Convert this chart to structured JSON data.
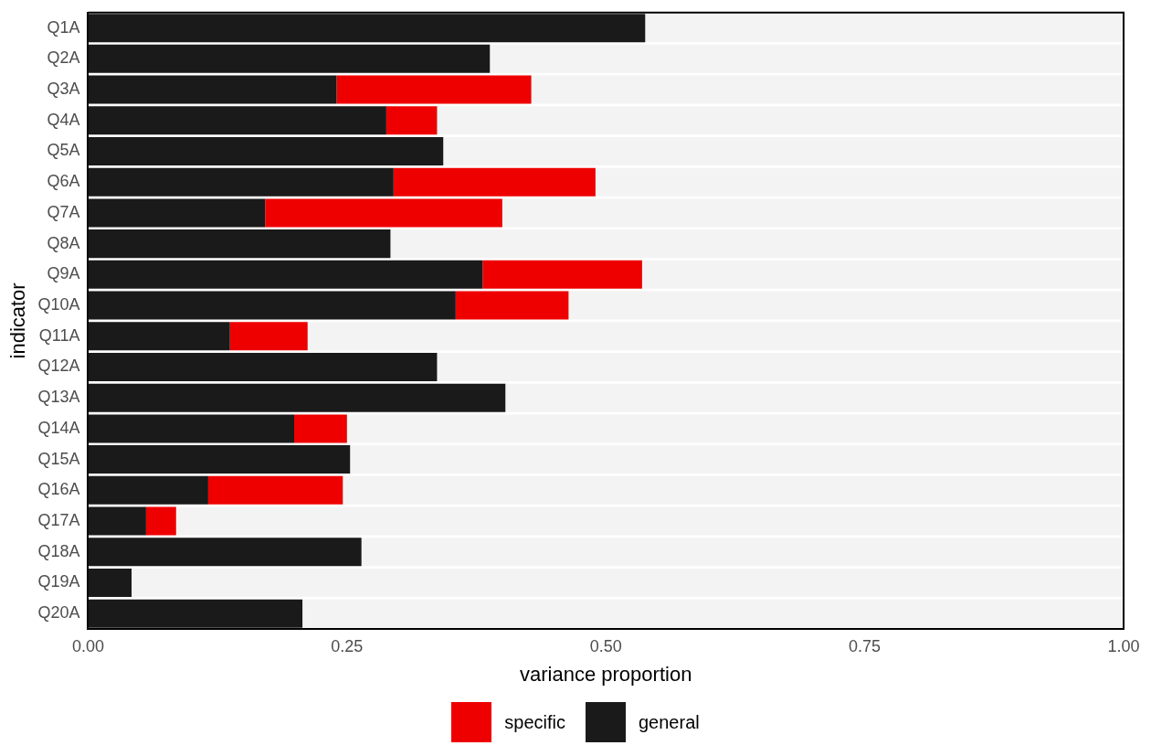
{
  "chart_data": {
    "type": "bar",
    "orientation": "horizontal",
    "stacked": true,
    "xlabel": "variance proportion",
    "ylabel": "indicator",
    "categories": [
      "Q1A",
      "Q2A",
      "Q3A",
      "Q4A",
      "Q5A",
      "Q6A",
      "Q7A",
      "Q8A",
      "Q9A",
      "Q10A",
      "Q11A",
      "Q12A",
      "Q13A",
      "Q14A",
      "Q15A",
      "Q16A",
      "Q17A",
      "Q18A",
      "Q19A",
      "Q20A"
    ],
    "series": [
      {
        "name": "general",
        "color": "#1a1a1a",
        "values": [
          0.538,
          0.388,
          0.24,
          0.288,
          0.343,
          0.295,
          0.171,
          0.292,
          0.381,
          0.355,
          0.137,
          0.337,
          0.403,
          0.199,
          0.253,
          0.116,
          0.056,
          0.264,
          0.042,
          0.207
        ]
      },
      {
        "name": "specific",
        "color": "#ee0000",
        "values": [
          0,
          0,
          0.188,
          0.049,
          0,
          0.195,
          0.229,
          0,
          0.154,
          0.109,
          0.075,
          0,
          0,
          0.051,
          0,
          0.13,
          0.029,
          0,
          0,
          0
        ]
      },
      {
        "color": "#f3f3f3",
        "values": [
          0.462,
          0.612,
          0.572,
          0.663,
          0.657,
          0.51,
          0.6,
          0.708,
          0.465,
          0.536,
          0.788,
          0.663,
          0.597,
          0.75,
          0.747,
          0.755,
          0.915,
          0.736,
          0.958,
          0.793
        ]
      }
    ],
    "xlim": [
      0,
      1
    ],
    "xticks": [
      {
        "value": 0,
        "label": "0.00"
      },
      {
        "value": 0.25,
        "label": "0.25"
      },
      {
        "value": 0.5,
        "label": "0.50"
      },
      {
        "value": 0.75,
        "label": "0.75"
      },
      {
        "value": 1,
        "label": "1.00"
      }
    ],
    "grid": false,
    "legend": "bottom"
  }
}
